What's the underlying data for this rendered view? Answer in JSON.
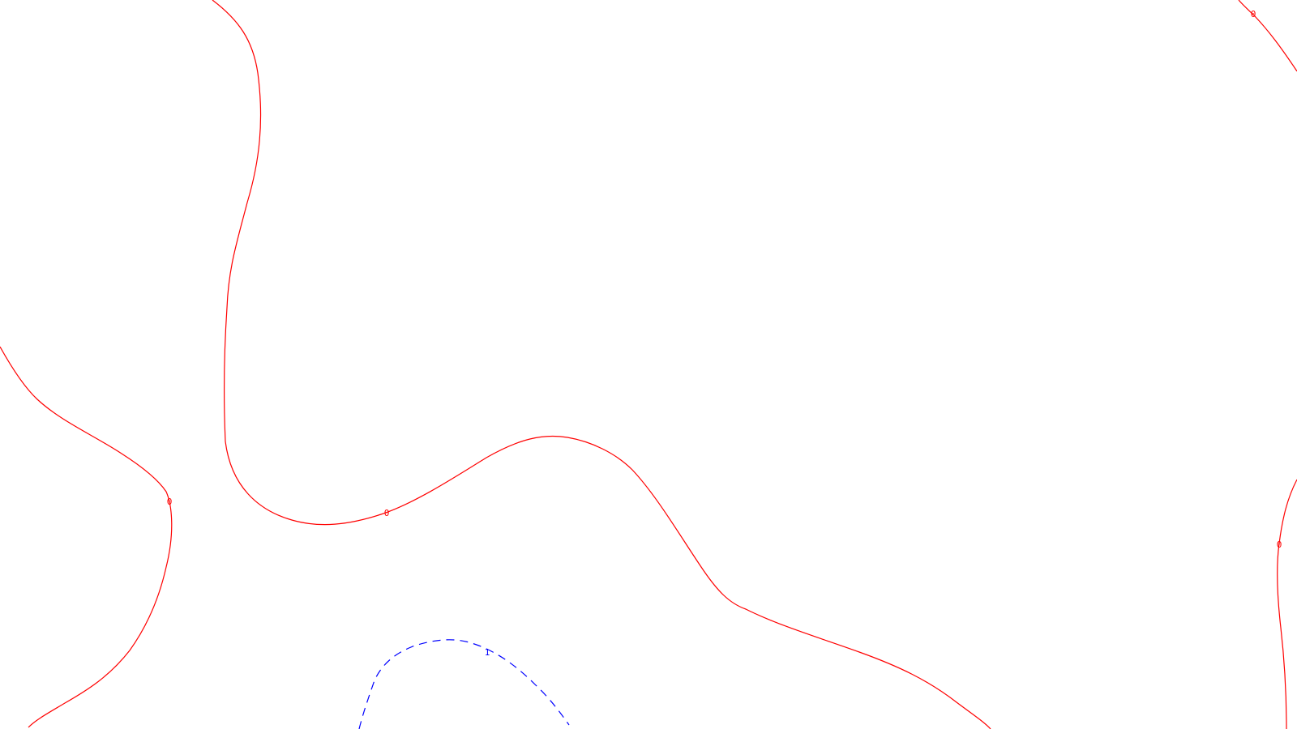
{
  "contour_map": {
    "colors": {
      "zero_contour": "#ff0000",
      "one_contour": "#0000ff",
      "background": "#ffffff"
    },
    "contours": [
      {
        "name": "zero-contour-top-left",
        "value_label": "0",
        "style": "solid"
      },
      {
        "name": "zero-contour-left",
        "value_label": "0",
        "style": "solid"
      },
      {
        "name": "zero-contour-main",
        "value_label": "0",
        "style": "solid"
      },
      {
        "name": "zero-contour-top-right",
        "value_label": "0",
        "style": "solid"
      },
      {
        "name": "zero-contour-right",
        "value_label": "0",
        "style": "solid"
      },
      {
        "name": "one-contour-bottom",
        "value_label": "1",
        "style": "dashed"
      }
    ]
  }
}
